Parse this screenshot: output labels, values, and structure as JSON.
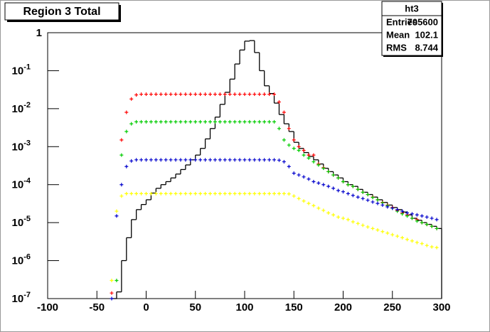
{
  "chart_data": {
    "type": "histogram",
    "title": "Region 3 Total",
    "color": "#000000",
    "log_y": true,
    "bins": [
      -35,
      -30,
      -25,
      -20,
      -15,
      -10,
      -5,
      0,
      5,
      10,
      15,
      20,
      25,
      30,
      35,
      40,
      45,
      50,
      55,
      60,
      65,
      70,
      75,
      80,
      85,
      90,
      95,
      100,
      105,
      110,
      115,
      120,
      125,
      130,
      135,
      140,
      145,
      150,
      155,
      160,
      165,
      170,
      175,
      180,
      185,
      190,
      195,
      200,
      205,
      210,
      215,
      220,
      225,
      230,
      235,
      240,
      245,
      250,
      255,
      260,
      265,
      270,
      275,
      280,
      285,
      290,
      295,
      300
    ],
    "values": [
      1e-07,
      1.5e-07,
      1e-06,
      4e-06,
      1.2e-05,
      2.2e-05,
      3e-05,
      4e-05,
      6e-05,
      8e-05,
      0.0001,
      0.00012,
      0.00015,
      0.00019,
      0.00025,
      0.00033,
      0.00045,
      0.0006,
      0.0009,
      0.0016,
      0.003,
      0.006,
      0.013,
      0.027,
      0.06,
      0.15,
      0.35,
      0.6,
      0.62,
      0.3,
      0.1,
      0.04,
      0.025,
      0.014,
      0.007,
      0.004,
      0.0025,
      0.0013,
      0.0009,
      0.0007,
      0.00055,
      0.00045,
      0.00035,
      0.00027,
      0.00022,
      0.00018,
      0.00015,
      0.00012,
      0.0001,
      9e-05,
      7.5e-05,
      6.3e-05,
      5.5e-05,
      4.7e-05,
      4e-05,
      3.4e-05,
      2.9e-05,
      2.5e-05,
      2.2e-05,
      1.9e-05,
      1.6e-05,
      1.3e-05,
      1.15e-05,
      1e-05,
      9e-06,
      8e-06,
      7e-06
    ],
    "x": [
      -35,
      -30,
      -25,
      -20,
      -15,
      -10,
      -5,
      0,
      5,
      10,
      15,
      20,
      25,
      30,
      35,
      40,
      45,
      50,
      55,
      60,
      65,
      70,
      75,
      80,
      85,
      90,
      95,
      100,
      105,
      110,
      115,
      120,
      125,
      130,
      135,
      140,
      145,
      150,
      155,
      160,
      165,
      170,
      175,
      180,
      185,
      190,
      195,
      200,
      205,
      210,
      215,
      220,
      225,
      230,
      235,
      240,
      245,
      250,
      255,
      260,
      265,
      270,
      275,
      280,
      285,
      290,
      295
    ],
    "series": [
      {
        "color": "#ff0000",
        "values": [
          1.4e-07,
          null,
          0.0015,
          0.008,
          0.018,
          0.023,
          0.024,
          0.024,
          0.024,
          0.024,
          0.024,
          0.024,
          0.024,
          0.024,
          0.024,
          0.024,
          0.024,
          0.024,
          0.024,
          0.024,
          0.024,
          0.024,
          0.024,
          0.024,
          0.024,
          0.024,
          0.024,
          0.024,
          0.024,
          0.024,
          0.024,
          0.024,
          0.024,
          0.024,
          0.015,
          0.008,
          0.003,
          0.0015,
          0.001,
          0.0008,
          0.0006,
          0.0006,
          0.00035,
          0.00028,
          0.00022,
          0.00018,
          0.00015,
          0.00012,
          0.0001,
          9e-05,
          7.5e-05,
          6.3e-05,
          5.5e-05,
          4.7e-05,
          4e-05,
          3.4e-05,
          2.9e-05,
          2.5e-05,
          2.1e-05,
          1.8e-05,
          1.6e-05,
          1.3e-05,
          1.2e-05,
          1e-05,
          9e-06,
          8e-06,
          7e-06
        ]
      },
      {
        "color": "#00cc00",
        "values": [
          null,
          3e-07,
          0.0006,
          0.0025,
          0.004,
          0.0045,
          0.0045,
          0.0045,
          0.0045,
          0.0045,
          0.0045,
          0.0045,
          0.0045,
          0.0045,
          0.0045,
          0.0045,
          0.0045,
          0.0045,
          0.0045,
          0.0045,
          0.0045,
          0.0045,
          0.0045,
          0.0045,
          0.0045,
          0.0045,
          0.0045,
          0.0045,
          0.0045,
          0.0045,
          0.0045,
          0.0045,
          0.0045,
          0.0045,
          0.003,
          0.0015,
          0.0011,
          0.0009,
          0.0008,
          0.0006,
          0.0005,
          0.0004,
          0.00033,
          0.00027,
          0.00022,
          0.00018,
          0.00015,
          0.00012,
          0.0001,
          9e-05,
          7.5e-05,
          6.3e-05,
          5.5e-05,
          4.6e-05,
          4e-05,
          3.3e-05,
          2.8e-05,
          2.4e-05,
          2e-05,
          1.7e-05,
          1.5e-05,
          1.3e-05,
          1.1e-05,
          1e-05,
          9e-06,
          8e-06,
          7e-06
        ]
      },
      {
        "color": "#0000cc",
        "values": [
          1e-07,
          1.5e-05,
          0.0001,
          0.0003,
          0.00042,
          0.00045,
          0.00045,
          0.00045,
          0.00045,
          0.00045,
          0.00045,
          0.00045,
          0.00045,
          0.00045,
          0.00045,
          0.00045,
          0.00045,
          0.00045,
          0.00045,
          0.00045,
          0.00045,
          0.00045,
          0.00045,
          0.00045,
          0.00045,
          0.00045,
          0.00045,
          0.00045,
          0.00045,
          0.00045,
          0.00045,
          0.00045,
          0.00045,
          0.00045,
          0.00044,
          0.0004,
          0.0003,
          0.0002,
          0.00018,
          0.00016,
          0.00014,
          0.00012,
          0.00011,
          0.0001,
          9e-05,
          8e-05,
          7e-05,
          6.5e-05,
          5.8e-05,
          5.2e-05,
          4.7e-05,
          4.3e-05,
          3.9e-05,
          3.5e-05,
          3.2e-05,
          2.9e-05,
          2.6e-05,
          2.4e-05,
          2.2e-05,
          2e-05,
          1.8e-05,
          1.7e-05,
          1.6e-05,
          1.5e-05,
          1.4e-05,
          1.3e-05,
          1.2e-05
        ]
      },
      {
        "color": "#ffff00",
        "values": [
          3e-07,
          2e-05,
          5e-05,
          5.8e-05,
          5.8e-05,
          5.8e-05,
          5.8e-05,
          5.8e-05,
          5.8e-05,
          5.8e-05,
          5.8e-05,
          5.8e-05,
          5.8e-05,
          5.8e-05,
          5.8e-05,
          5.8e-05,
          5.8e-05,
          5.8e-05,
          5.8e-05,
          5.8e-05,
          5.8e-05,
          5.8e-05,
          5.8e-05,
          5.8e-05,
          5.8e-05,
          5.8e-05,
          5.8e-05,
          5.8e-05,
          5.8e-05,
          5.8e-05,
          5.8e-05,
          5.8e-05,
          5.8e-05,
          5.8e-05,
          5.8e-05,
          5.8e-05,
          5.7e-05,
          5e-05,
          4.3e-05,
          3.7e-05,
          3.2e-05,
          2.8e-05,
          2.4e-05,
          2.1e-05,
          1.8e-05,
          1.6e-05,
          1.4e-05,
          1.3e-05,
          1.2e-05,
          1.05e-05,
          9.5e-06,
          8.5e-06,
          7.7e-06,
          7e-06,
          6.4e-06,
          5.8e-06,
          5.3e-06,
          4.8e-06,
          4.4e-06,
          4e-06,
          3.6e-06,
          3.3e-06,
          3e-06,
          2.8e-06,
          2.5e-06,
          2.3e-06,
          2.2e-06
        ]
      }
    ],
    "xlim": [
      -100,
      300
    ],
    "xticks": [
      -100,
      -50,
      0,
      50,
      100,
      150,
      200,
      250,
      300
    ],
    "ylim": [
      1e-07,
      1
    ],
    "yticks": [
      {
        "value": 1e-07,
        "label": "10",
        "exponent": "-7"
      },
      {
        "value": 1e-06,
        "label": "10",
        "exponent": "-6"
      },
      {
        "value": 1e-05,
        "label": "10",
        "exponent": "-5"
      },
      {
        "value": 0.0001,
        "label": "10",
        "exponent": "-4"
      },
      {
        "value": 0.001,
        "label": "10",
        "exponent": "-3"
      },
      {
        "value": 0.01,
        "label": "10",
        "exponent": "-2"
      },
      {
        "value": 0.1,
        "label": "10",
        "exponent": "-1"
      },
      1
    ],
    "stats": {
      "name": "ht3",
      "rows": [
        [
          "Entries",
          "705600"
        ],
        [
          "Mean",
          "102.1"
        ],
        [
          "RMS",
          "8.744"
        ]
      ]
    }
  }
}
